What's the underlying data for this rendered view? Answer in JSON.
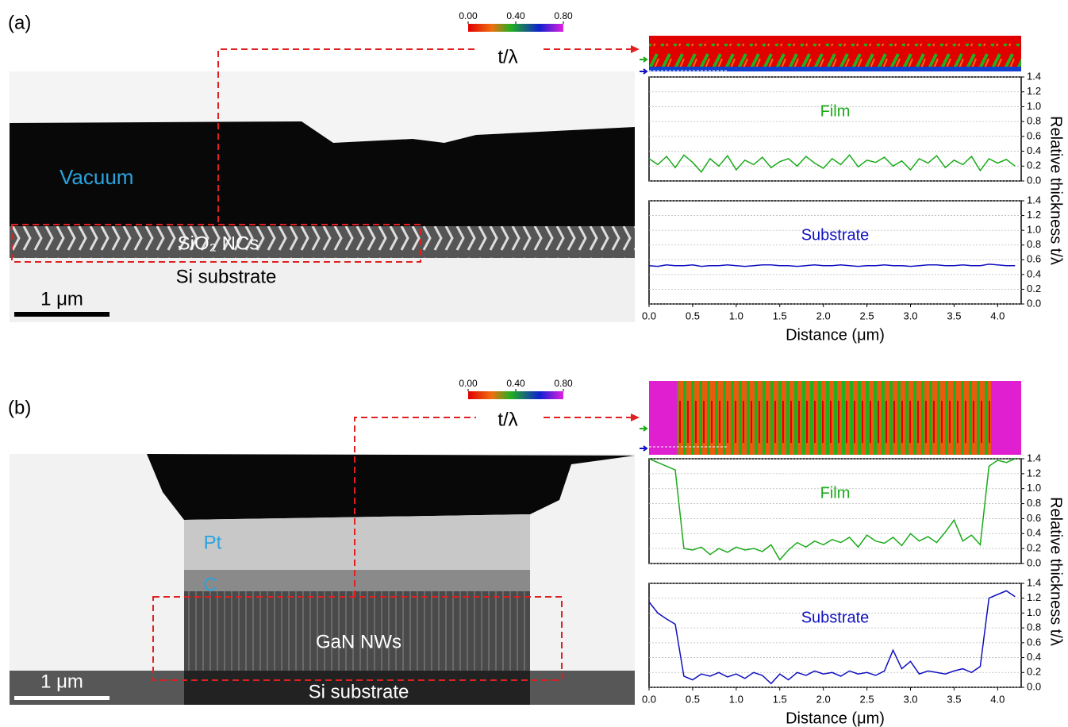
{
  "figure": {
    "panels": [
      {
        "label": "(a)",
        "colorbar": {
          "label": "t/λ",
          "lim": [
            0,
            0.8
          ],
          "ticks": [
            {
              "value": 0,
              "label": "0.00"
            },
            {
              "value": 0.4,
              "label": "0.40"
            },
            {
              "value": 0.8,
              "label": "0.80"
            }
          ]
        },
        "image_labels": [
          "Vacuum",
          "SiO₂ NCs",
          "Si substrate"
        ],
        "scale_bar": "1 μm",
        "ylabel": "Relative thickness t/λ"
      },
      {
        "label": "(b)",
        "colorbar": {
          "label": "t/λ",
          "lim": [
            0,
            0.8
          ],
          "ticks": [
            {
              "value": 0,
              "label": "0.00"
            },
            {
              "value": 0.4,
              "label": "0.40"
            },
            {
              "value": 0.8,
              "label": "0.80"
            }
          ]
        },
        "image_labels": [
          "Pt",
          "C",
          "GaN NWs",
          "Si substrate"
        ],
        "scale_bar": "1 μm",
        "ylabel": "Relative thickness t/λ"
      }
    ]
  },
  "chart_data": [
    {
      "type": "line",
      "title": "Film",
      "grid": true,
      "xlim": [
        0,
        4.27
      ],
      "ylim": [
        0,
        1.4
      ],
      "yticks": [
        {
          "value": 0,
          "label": "0.0"
        },
        0.2,
        0.4,
        0.6,
        0.8,
        {
          "value": 1,
          "label": "1.0"
        },
        1.2,
        1.4
      ],
      "x": [
        0,
        0.1,
        0.2,
        0.3,
        0.4,
        0.5,
        0.6,
        0.7,
        0.8,
        0.9,
        1,
        1.1,
        1.2,
        1.3,
        1.4,
        1.5,
        1.6,
        1.7,
        1.8,
        1.9,
        2,
        2.1,
        2.2,
        2.3,
        2.4,
        2.5,
        2.6,
        2.7,
        2.8,
        2.9,
        3,
        3.1,
        3.2,
        3.3,
        3.4,
        3.5,
        3.6,
        3.7,
        3.8,
        3.9,
        4,
        4.1,
        4.2
      ],
      "color": "#1aab1a",
      "values": [
        0.3,
        0.22,
        0.33,
        0.18,
        0.35,
        0.25,
        0.12,
        0.3,
        0.2,
        0.34,
        0.15,
        0.28,
        0.22,
        0.32,
        0.18,
        0.26,
        0.3,
        0.2,
        0.33,
        0.24,
        0.17,
        0.3,
        0.22,
        0.35,
        0.19,
        0.28,
        0.25,
        0.32,
        0.2,
        0.27,
        0.15,
        0.3,
        0.24,
        0.34,
        0.18,
        0.28,
        0.22,
        0.33,
        0.14,
        0.3,
        0.24,
        0.29,
        0.2
      ]
    },
    {
      "type": "line",
      "title": "Substrate",
      "grid": true,
      "xlim": [
        0,
        4.27
      ],
      "ylim": [
        0,
        1.4
      ],
      "xlabel": "Distance (μm)",
      "yticks": [
        {
          "value": 0,
          "label": "0.0"
        },
        0.2,
        0.4,
        0.6,
        0.8,
        {
          "value": 1,
          "label": "1.0"
        },
        1.2,
        1.4
      ],
      "xticks": [
        {
          "value": 0,
          "label": "0.0"
        },
        0.5,
        {
          "value": 1,
          "label": "1.0"
        },
        1.5,
        {
          "value": 2,
          "label": "2.0"
        },
        2.5,
        {
          "value": 3,
          "label": "3.0"
        },
        3.5,
        {
          "value": 4,
          "label": "4.0"
        }
      ],
      "x": [
        0,
        0.1,
        0.2,
        0.3,
        0.4,
        0.5,
        0.6,
        0.7,
        0.8,
        0.9,
        1,
        1.1,
        1.2,
        1.3,
        1.4,
        1.5,
        1.6,
        1.7,
        1.8,
        1.9,
        2,
        2.1,
        2.2,
        2.3,
        2.4,
        2.5,
        2.6,
        2.7,
        2.8,
        2.9,
        3,
        3.1,
        3.2,
        3.3,
        3.4,
        3.5,
        3.6,
        3.7,
        3.8,
        3.9,
        4,
        4.1,
        4.2
      ],
      "color": "#1010c0",
      "values": [
        0.52,
        0.51,
        0.53,
        0.52,
        0.52,
        0.53,
        0.51,
        0.52,
        0.52,
        0.53,
        0.52,
        0.51,
        0.52,
        0.53,
        0.53,
        0.52,
        0.52,
        0.51,
        0.52,
        0.53,
        0.52,
        0.52,
        0.53,
        0.52,
        0.51,
        0.52,
        0.52,
        0.53,
        0.52,
        0.52,
        0.51,
        0.52,
        0.53,
        0.53,
        0.52,
        0.52,
        0.53,
        0.52,
        0.52,
        0.54,
        0.53,
        0.52,
        0.52
      ]
    },
    {
      "type": "line",
      "title": "Film",
      "grid": true,
      "xlim": [
        0,
        4.27
      ],
      "ylim": [
        0,
        1.4
      ],
      "yticks": [
        {
          "value": 0,
          "label": "0.0"
        },
        0.2,
        0.4,
        0.6,
        0.8,
        {
          "value": 1,
          "label": "1.0"
        },
        1.2,
        1.4
      ],
      "x": [
        0,
        0.1,
        0.2,
        0.3,
        0.4,
        0.5,
        0.6,
        0.7,
        0.8,
        0.9,
        1,
        1.1,
        1.2,
        1.3,
        1.4,
        1.5,
        1.6,
        1.7,
        1.8,
        1.9,
        2,
        2.1,
        2.2,
        2.3,
        2.4,
        2.5,
        2.6,
        2.7,
        2.8,
        2.9,
        3,
        3.1,
        3.2,
        3.3,
        3.4,
        3.5,
        3.6,
        3.7,
        3.8,
        3.9,
        4,
        4.1,
        4.2
      ],
      "color": "#1aab1a",
      "values": [
        1.4,
        1.35,
        1.3,
        1.25,
        0.2,
        0.18,
        0.22,
        0.12,
        0.2,
        0.15,
        0.22,
        0.18,
        0.2,
        0.16,
        0.25,
        0.05,
        0.18,
        0.28,
        0.22,
        0.3,
        0.25,
        0.32,
        0.28,
        0.35,
        0.22,
        0.38,
        0.3,
        0.27,
        0.35,
        0.24,
        0.4,
        0.3,
        0.36,
        0.28,
        0.42,
        0.58,
        0.3,
        0.38,
        0.25,
        1.3,
        1.38,
        1.35,
        1.4
      ]
    },
    {
      "type": "line",
      "title": "Substrate",
      "grid": true,
      "xlim": [
        0,
        4.27
      ],
      "ylim": [
        0,
        1.4
      ],
      "xlabel": "Distance (μm)",
      "yticks": [
        {
          "value": 0,
          "label": "0.0"
        },
        0.2,
        0.4,
        0.6,
        0.8,
        {
          "value": 1,
          "label": "1.0"
        },
        1.2,
        1.4
      ],
      "xticks": [
        {
          "value": 0,
          "label": "0.0"
        },
        0.5,
        {
          "value": 1,
          "label": "1.0"
        },
        1.5,
        {
          "value": 2,
          "label": "2.0"
        },
        2.5,
        {
          "value": 3,
          "label": "3.0"
        },
        3.5,
        {
          "value": 4,
          "label": "4.0"
        }
      ],
      "x": [
        0,
        0.1,
        0.2,
        0.3,
        0.4,
        0.5,
        0.6,
        0.7,
        0.8,
        0.9,
        1,
        1.1,
        1.2,
        1.3,
        1.4,
        1.5,
        1.6,
        1.7,
        1.8,
        1.9,
        2,
        2.1,
        2.2,
        2.3,
        2.4,
        2.5,
        2.6,
        2.7,
        2.8,
        2.9,
        3,
        3.1,
        3.2,
        3.3,
        3.4,
        3.5,
        3.6,
        3.7,
        3.8,
        3.9,
        4,
        4.1,
        4.2
      ],
      "color": "#1010c0",
      "values": [
        1.15,
        1.0,
        0.92,
        0.85,
        0.15,
        0.1,
        0.18,
        0.15,
        0.2,
        0.14,
        0.18,
        0.12,
        0.2,
        0.16,
        0.05,
        0.18,
        0.1,
        0.2,
        0.16,
        0.22,
        0.18,
        0.2,
        0.15,
        0.22,
        0.18,
        0.2,
        0.16,
        0.22,
        0.5,
        0.25,
        0.35,
        0.18,
        0.22,
        0.2,
        0.18,
        0.22,
        0.25,
        0.2,
        0.28,
        1.2,
        1.25,
        1.3,
        1.22
      ]
    }
  ]
}
